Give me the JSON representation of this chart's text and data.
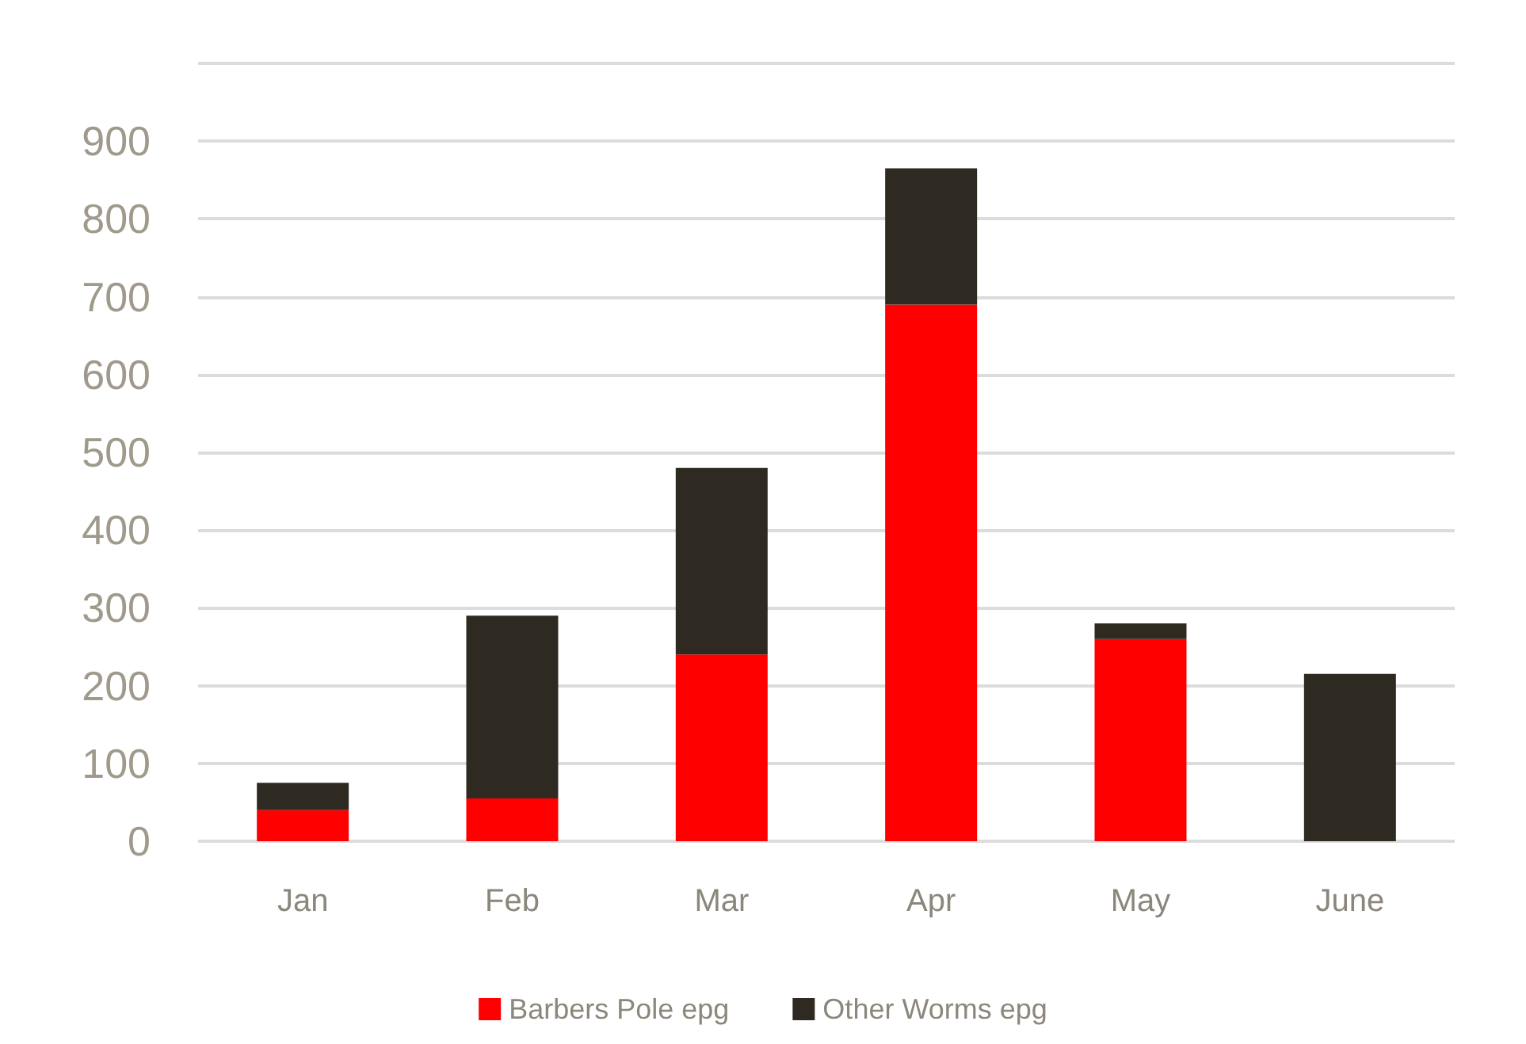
{
  "chart_data": {
    "type": "bar",
    "stacked": true,
    "categories": [
      "Jan",
      "Feb",
      "Mar",
      "Apr",
      "May",
      "June"
    ],
    "series": [
      {
        "name": "Barbers Pole epg",
        "color": "#ff0000",
        "values": [
          40,
          55,
          240,
          690,
          260,
          0
        ]
      },
      {
        "name": "Other Worms epg",
        "color": "#2e2a22",
        "values": [
          35,
          235,
          240,
          175,
          20,
          215
        ]
      }
    ],
    "ylim": [
      0,
      1000
    ],
    "yticks": [
      0,
      100,
      200,
      300,
      400,
      500,
      600,
      700,
      800,
      900,
      {
        "value": 1000,
        "label": null
      }
    ],
    "grid": "y",
    "legend": "bottom"
  }
}
